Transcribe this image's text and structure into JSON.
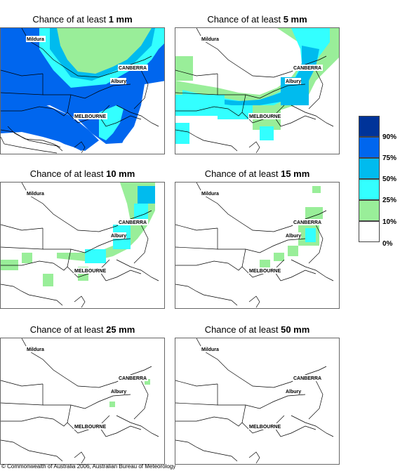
{
  "panels": [
    {
      "title_prefix": "Chance of at least ",
      "threshold": "1 mm"
    },
    {
      "title_prefix": "Chance of at least ",
      "threshold": "5 mm"
    },
    {
      "title_prefix": "Chance of at least ",
      "threshold": "10 mm"
    },
    {
      "title_prefix": "Chance of at least ",
      "threshold": "15 mm"
    },
    {
      "title_prefix": "Chance of at least ",
      "threshold": "25 mm"
    },
    {
      "title_prefix": "Chance of at least ",
      "threshold": "50 mm"
    }
  ],
  "cities": {
    "mildura": "Mildura",
    "canberra": "CANBERRA",
    "albury": "Albury",
    "melbourne": "MELBOURNE"
  },
  "legend": {
    "labels": [
      "90%",
      "75%",
      "50%",
      "25%",
      "10%",
      "0%"
    ],
    "colors": [
      "#003399",
      "#0066ee",
      "#00bbee",
      "#33ffff",
      "#99ee99",
      "#ffffff"
    ]
  },
  "copyright": "© Commonwealth of Australia 2006, Australian Bureau of Meteorology"
}
